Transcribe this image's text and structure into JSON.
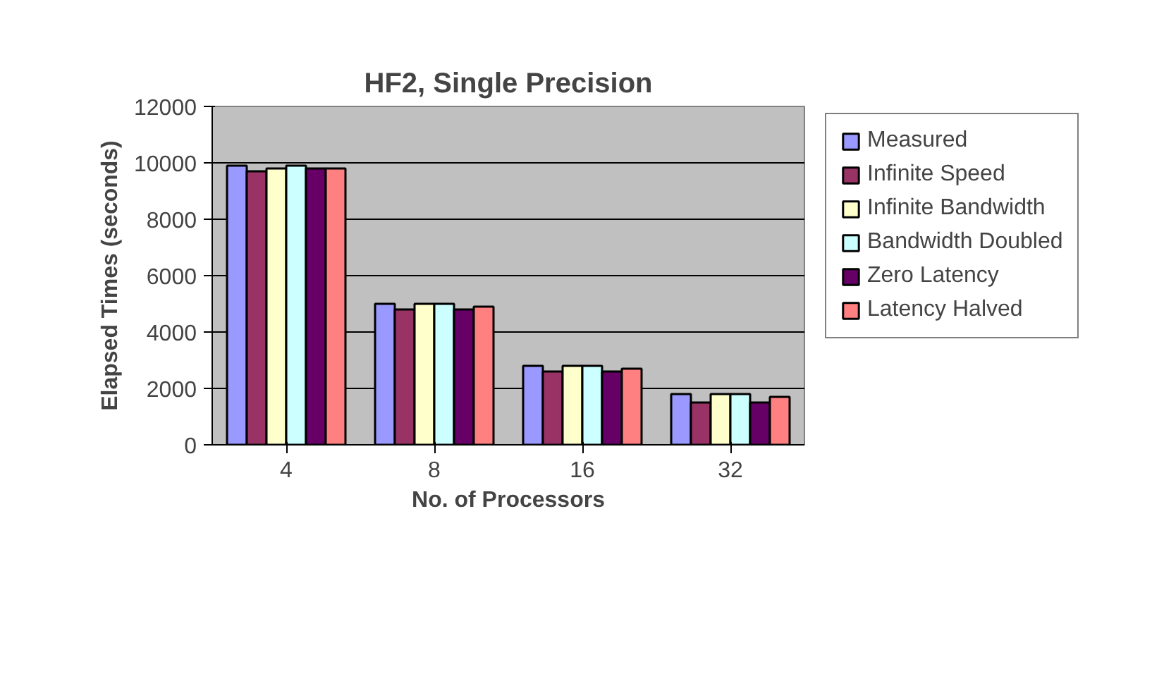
{
  "chart_data": {
    "type": "bar",
    "title": "HF2, Single Precision",
    "xlabel": "No. of Processors",
    "ylabel": "Elapsed Times (seconds)",
    "categories": [
      "4",
      "8",
      "16",
      "32"
    ],
    "series": [
      {
        "name": "Measured",
        "color": "#9999ff",
        "values": [
          9900,
          5000,
          2800,
          1800
        ]
      },
      {
        "name": "Infinite Speed",
        "color": "#993366",
        "values": [
          9700,
          4800,
          2600,
          1500
        ]
      },
      {
        "name": "Infinite Bandwidth",
        "color": "#ffffcc",
        "values": [
          9800,
          5000,
          2800,
          1800
        ]
      },
      {
        "name": "Bandwidth Doubled",
        "color": "#ccffff",
        "values": [
          9900,
          5000,
          2800,
          1800
        ]
      },
      {
        "name": "Zero Latency",
        "color": "#660066",
        "values": [
          9800,
          4800,
          2600,
          1500
        ]
      },
      {
        "name": "Latency Halved",
        "color": "#ff8080",
        "values": [
          9800,
          4900,
          2700,
          1700
        ]
      }
    ],
    "ylim": [
      0,
      12000
    ],
    "yticks": [
      0,
      2000,
      4000,
      6000,
      8000,
      10000,
      12000
    ],
    "grid": "y",
    "legend": "right"
  }
}
